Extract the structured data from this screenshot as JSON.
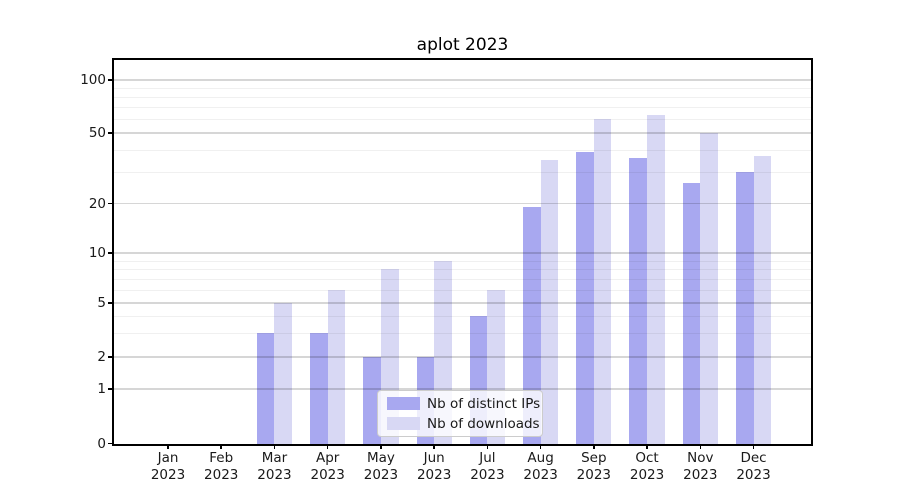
{
  "chart_data": {
    "type": "bar",
    "title": "aplot 2023",
    "categories": [
      "Jan",
      "Feb",
      "Mar",
      "Apr",
      "May",
      "Jun",
      "Jul",
      "Aug",
      "Sep",
      "Oct",
      "Nov",
      "Dec"
    ],
    "category_year": "2023",
    "series": [
      {
        "name": "Nb of distinct IPs",
        "color": "#a8a8f0",
        "values": [
          0,
          0,
          3,
          3,
          2,
          2,
          4,
          19,
          39,
          36,
          26,
          30
        ]
      },
      {
        "name": "Nb of downloads",
        "color": "#d8d8f4",
        "values": [
          0,
          0,
          5,
          6,
          8,
          9,
          6,
          35,
          60,
          63,
          50,
          37
        ]
      }
    ],
    "xlabel": "",
    "ylabel": "",
    "yscale": "log-like with zero baseline",
    "y_major_ticks": [
      0,
      1,
      2,
      5,
      10,
      20,
      50,
      100
    ],
    "y_minor_gridlines": [
      3,
      4,
      6,
      7,
      8,
      9,
      30,
      40,
      60,
      70,
      80,
      90
    ],
    "ylim": [
      0,
      120
    ],
    "grid": "horizontal major and minor gridlines, drawn over bars",
    "legend": {
      "position": "lower center of plot",
      "entries": [
        "Nb of distinct IPs",
        "Nb of downloads"
      ]
    }
  }
}
